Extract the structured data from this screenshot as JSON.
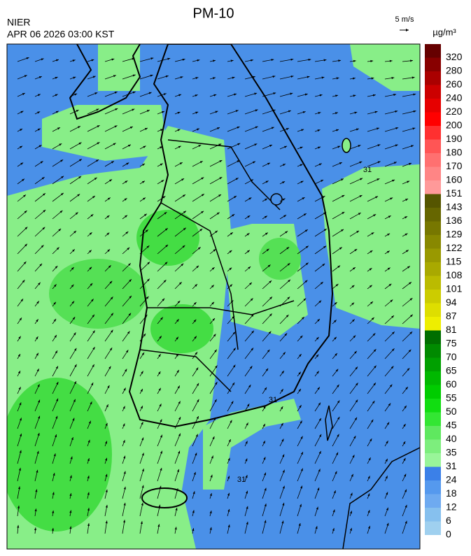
{
  "header": {
    "title": "PM-10",
    "agency": "NIER",
    "datetime": "APR 06 2026 03:00 KST"
  },
  "wind_scale": {
    "label": "5 m/s"
  },
  "colorbar": {
    "unit": "µg/m³",
    "levels": [
      0,
      6,
      12,
      18,
      24,
      31,
      35,
      40,
      45,
      50,
      55,
      60,
      65,
      70,
      75,
      81,
      87,
      94,
      101,
      108,
      115,
      122,
      129,
      136,
      143,
      151,
      160,
      170,
      180,
      190,
      200,
      220,
      240,
      260,
      280,
      320
    ],
    "colors": [
      "#9fd0ef",
      "#86c0ee",
      "#6eaaf0",
      "#5599ee",
      "#3b80e8",
      "#99f599",
      "#7dee7d",
      "#5fe85f",
      "#33e633",
      "#11dd11",
      "#00cc00",
      "#00b800",
      "#00a000",
      "#008a00",
      "#006e00",
      "#eeee00",
      "#dede00",
      "#cccc00",
      "#bbbb00",
      "#a9a900",
      "#999900",
      "#888800",
      "#777700",
      "#666600",
      "#555500",
      "#ff9999",
      "#ff8585",
      "#ff7070",
      "#ff5555",
      "#ff3030",
      "#ff0000",
      "#e60000",
      "#cc0000",
      "#aa0000",
      "#880000",
      "#660000"
    ]
  },
  "map": {
    "contour_labels": [
      "31",
      "31",
      "31"
    ]
  }
}
